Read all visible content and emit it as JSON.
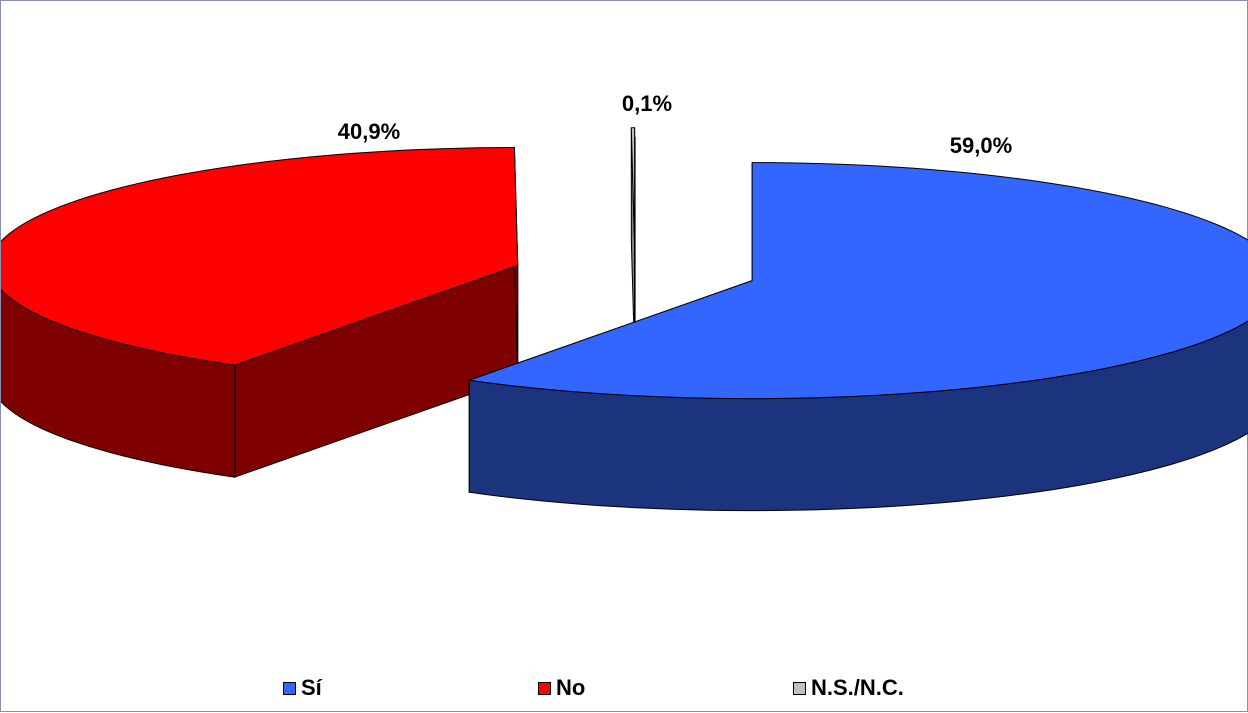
{
  "chart_data": {
    "type": "pie",
    "style": "3d-exploded",
    "categories": [
      "Sí",
      "No",
      "N.S./N.C."
    ],
    "values": [
      59.0,
      40.9,
      0.1
    ],
    "labels": [
      "59,0%",
      "40,9%",
      "0,1%"
    ],
    "colors": {
      "Sí": {
        "top": "#3366ff",
        "side": "#1c347d"
      },
      "No": {
        "top": "#ff0000",
        "side": "#7f0000"
      },
      "N.S./N.C.": {
        "top": "#c0c0c0",
        "side": "#808080"
      }
    },
    "legend_position": "bottom"
  },
  "legend": {
    "items": [
      {
        "label": "Sí",
        "color": "#3366ff"
      },
      {
        "label": "No",
        "color": "#ff0000"
      },
      {
        "label": "N.S./N.C.",
        "color": "#c0c0c0"
      }
    ]
  }
}
